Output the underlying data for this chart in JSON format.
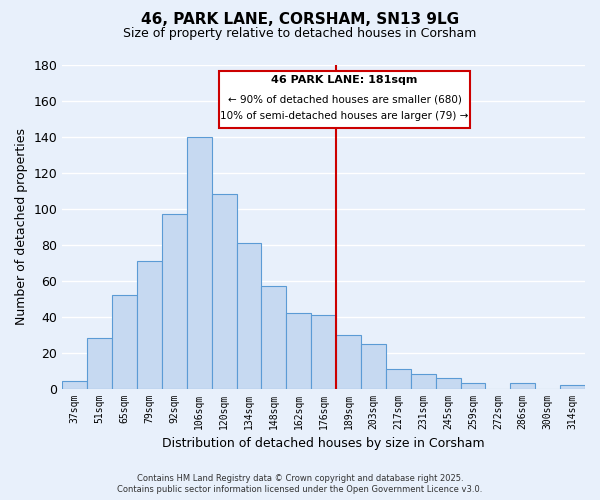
{
  "title": "46, PARK LANE, CORSHAM, SN13 9LG",
  "subtitle": "Size of property relative to detached houses in Corsham",
  "xlabel": "Distribution of detached houses by size in Corsham",
  "ylabel": "Number of detached properties",
  "categories": [
    "37sqm",
    "51sqm",
    "65sqm",
    "79sqm",
    "92sqm",
    "106sqm",
    "120sqm",
    "134sqm",
    "148sqm",
    "162sqm",
    "176sqm",
    "189sqm",
    "203sqm",
    "217sqm",
    "231sqm",
    "245sqm",
    "259sqm",
    "272sqm",
    "286sqm",
    "300sqm",
    "314sqm"
  ],
  "values": [
    4,
    28,
    52,
    71,
    97,
    140,
    108,
    81,
    57,
    42,
    41,
    30,
    25,
    11,
    8,
    6,
    3,
    0,
    3,
    0,
    2
  ],
  "bar_color": "#c6d9f1",
  "bar_edge_color": "#5b9bd5",
  "vline_color": "#cc0000",
  "annotation_title": "46 PARK LANE: 181sqm",
  "annotation_line1": "← 90% of detached houses are smaller (680)",
  "annotation_line2": "10% of semi-detached houses are larger (79) →",
  "ylim": [
    0,
    180
  ],
  "yticks": [
    0,
    20,
    40,
    60,
    80,
    100,
    120,
    140,
    160,
    180
  ],
  "footer_line1": "Contains HM Land Registry data © Crown copyright and database right 2025.",
  "footer_line2": "Contains public sector information licensed under the Open Government Licence v3.0.",
  "background_color": "#e8f0fb",
  "grid_color": "#c8d8f0"
}
